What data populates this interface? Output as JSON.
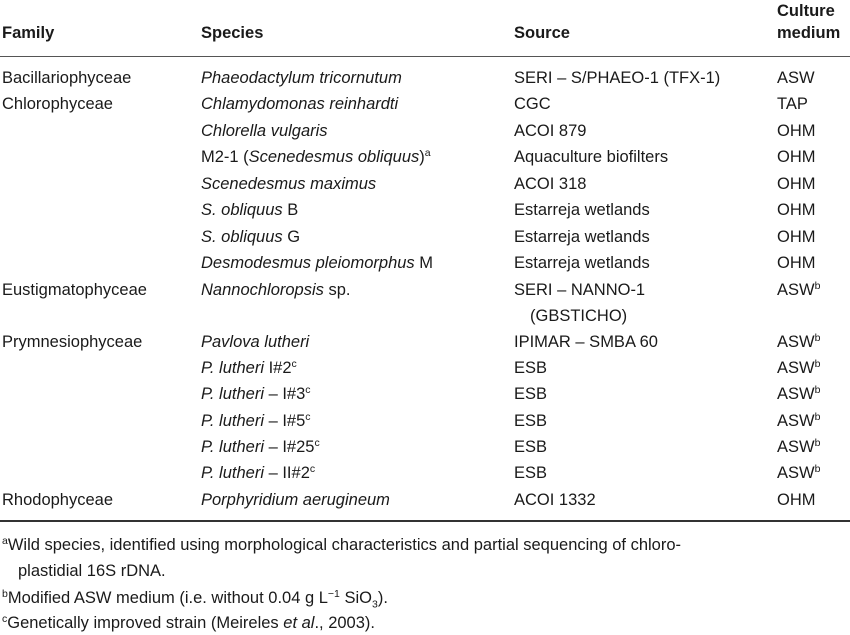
{
  "header": {
    "family": "Family",
    "species": "Species",
    "source": "Source",
    "culture_line1": "Culture",
    "culture_line2": "medium"
  },
  "rows": [
    {
      "family": "Bacillariophyceae",
      "species_i": "Phaeodactylum tricornutum",
      "source": "SERI – S/PHAEO-1 (TFX-1)",
      "medium": "ASW"
    },
    {
      "family": "Chlorophyceae",
      "species_i": "Chlamydomonas reinhardti",
      "source": "CGC",
      "medium": "TAP"
    },
    {
      "family": "",
      "species_i": "Chlorella vulgaris",
      "source": "ACOI 879",
      "medium": "OHM"
    },
    {
      "family": "",
      "species_pre": "M2-1 (",
      "species_i": "Scenedesmus obliquus",
      "species_post": ")",
      "species_sup": "a",
      "source": "Aquaculture biofilters",
      "medium": "OHM"
    },
    {
      "family": "",
      "species_i": "Scenedesmus maximus",
      "source": "ACOI 318",
      "medium": "OHM"
    },
    {
      "family": "",
      "species_i": "S. obliquus",
      "species_post": " B",
      "source": "Estarreja wetlands",
      "medium": "OHM"
    },
    {
      "family": "",
      "species_i": "S. obliquus",
      "species_post": " G",
      "source": "Estarreja wetlands",
      "medium": "OHM"
    },
    {
      "family": "",
      "species_i": "Desmodesmus pleiomorphus",
      "species_post": " M",
      "source": "Estarreja wetlands",
      "medium": "OHM"
    },
    {
      "family": "Eustigmatophyceae",
      "species_i": "Nannochloropsis",
      "species_post": " sp.",
      "source": "SERI – NANNO-1",
      "source2": "(GBSTICHO)",
      "medium": "ASW",
      "medium_sup": "b"
    },
    {
      "family": "Prymnesiophyceae",
      "species_i": "Pavlova lutheri",
      "source": "IPIMAR – SMBA 60",
      "medium": "ASW",
      "medium_sup": "b"
    },
    {
      "family": "",
      "species_i": "P. lutheri",
      "species_post": " I#2",
      "species_sup": "c",
      "source": "ESB",
      "medium": "ASW",
      "medium_sup": "b"
    },
    {
      "family": "",
      "species_i": "P. lutheri",
      "species_post": " – I#3",
      "species_sup": "c",
      "source": "ESB",
      "medium": "ASW",
      "medium_sup": "b"
    },
    {
      "family": "",
      "species_i": "P. lutheri",
      "species_post": " – I#5",
      "species_sup": "c",
      "source": "ESB",
      "medium": "ASW",
      "medium_sup": "b"
    },
    {
      "family": "",
      "species_i": "P. lutheri",
      "species_post": " – I#25",
      "species_sup": "c",
      "source": "ESB",
      "medium": "ASW",
      "medium_sup": "b"
    },
    {
      "family": "",
      "species_i": "P. lutheri",
      "species_post": " – II#2",
      "species_sup": "c",
      "source": "ESB",
      "medium": "ASW",
      "medium_sup": "b"
    },
    {
      "family": "Rhodophyceae",
      "species_i": "Porphyridium aerugineum",
      "source": "ACOI 1332",
      "medium": "OHM"
    }
  ],
  "footnotes": {
    "a_mark": "a",
    "a_line1": "Wild species, identified using morphological characteristics and partial sequencing of chloro-",
    "a_line2": "plastidial 16S rDNA.",
    "b_mark": "b",
    "b_pre": "Modified ASW medium (i.e. without 0.04 g L",
    "b_sup": "−1",
    "b_post": " SiO",
    "b_sub": "3",
    "b_end": ").",
    "c_mark": "c",
    "c_pre": "Genetically improved strain (Meireles ",
    "c_italic": "et al",
    "c_post": "., 2003)."
  }
}
